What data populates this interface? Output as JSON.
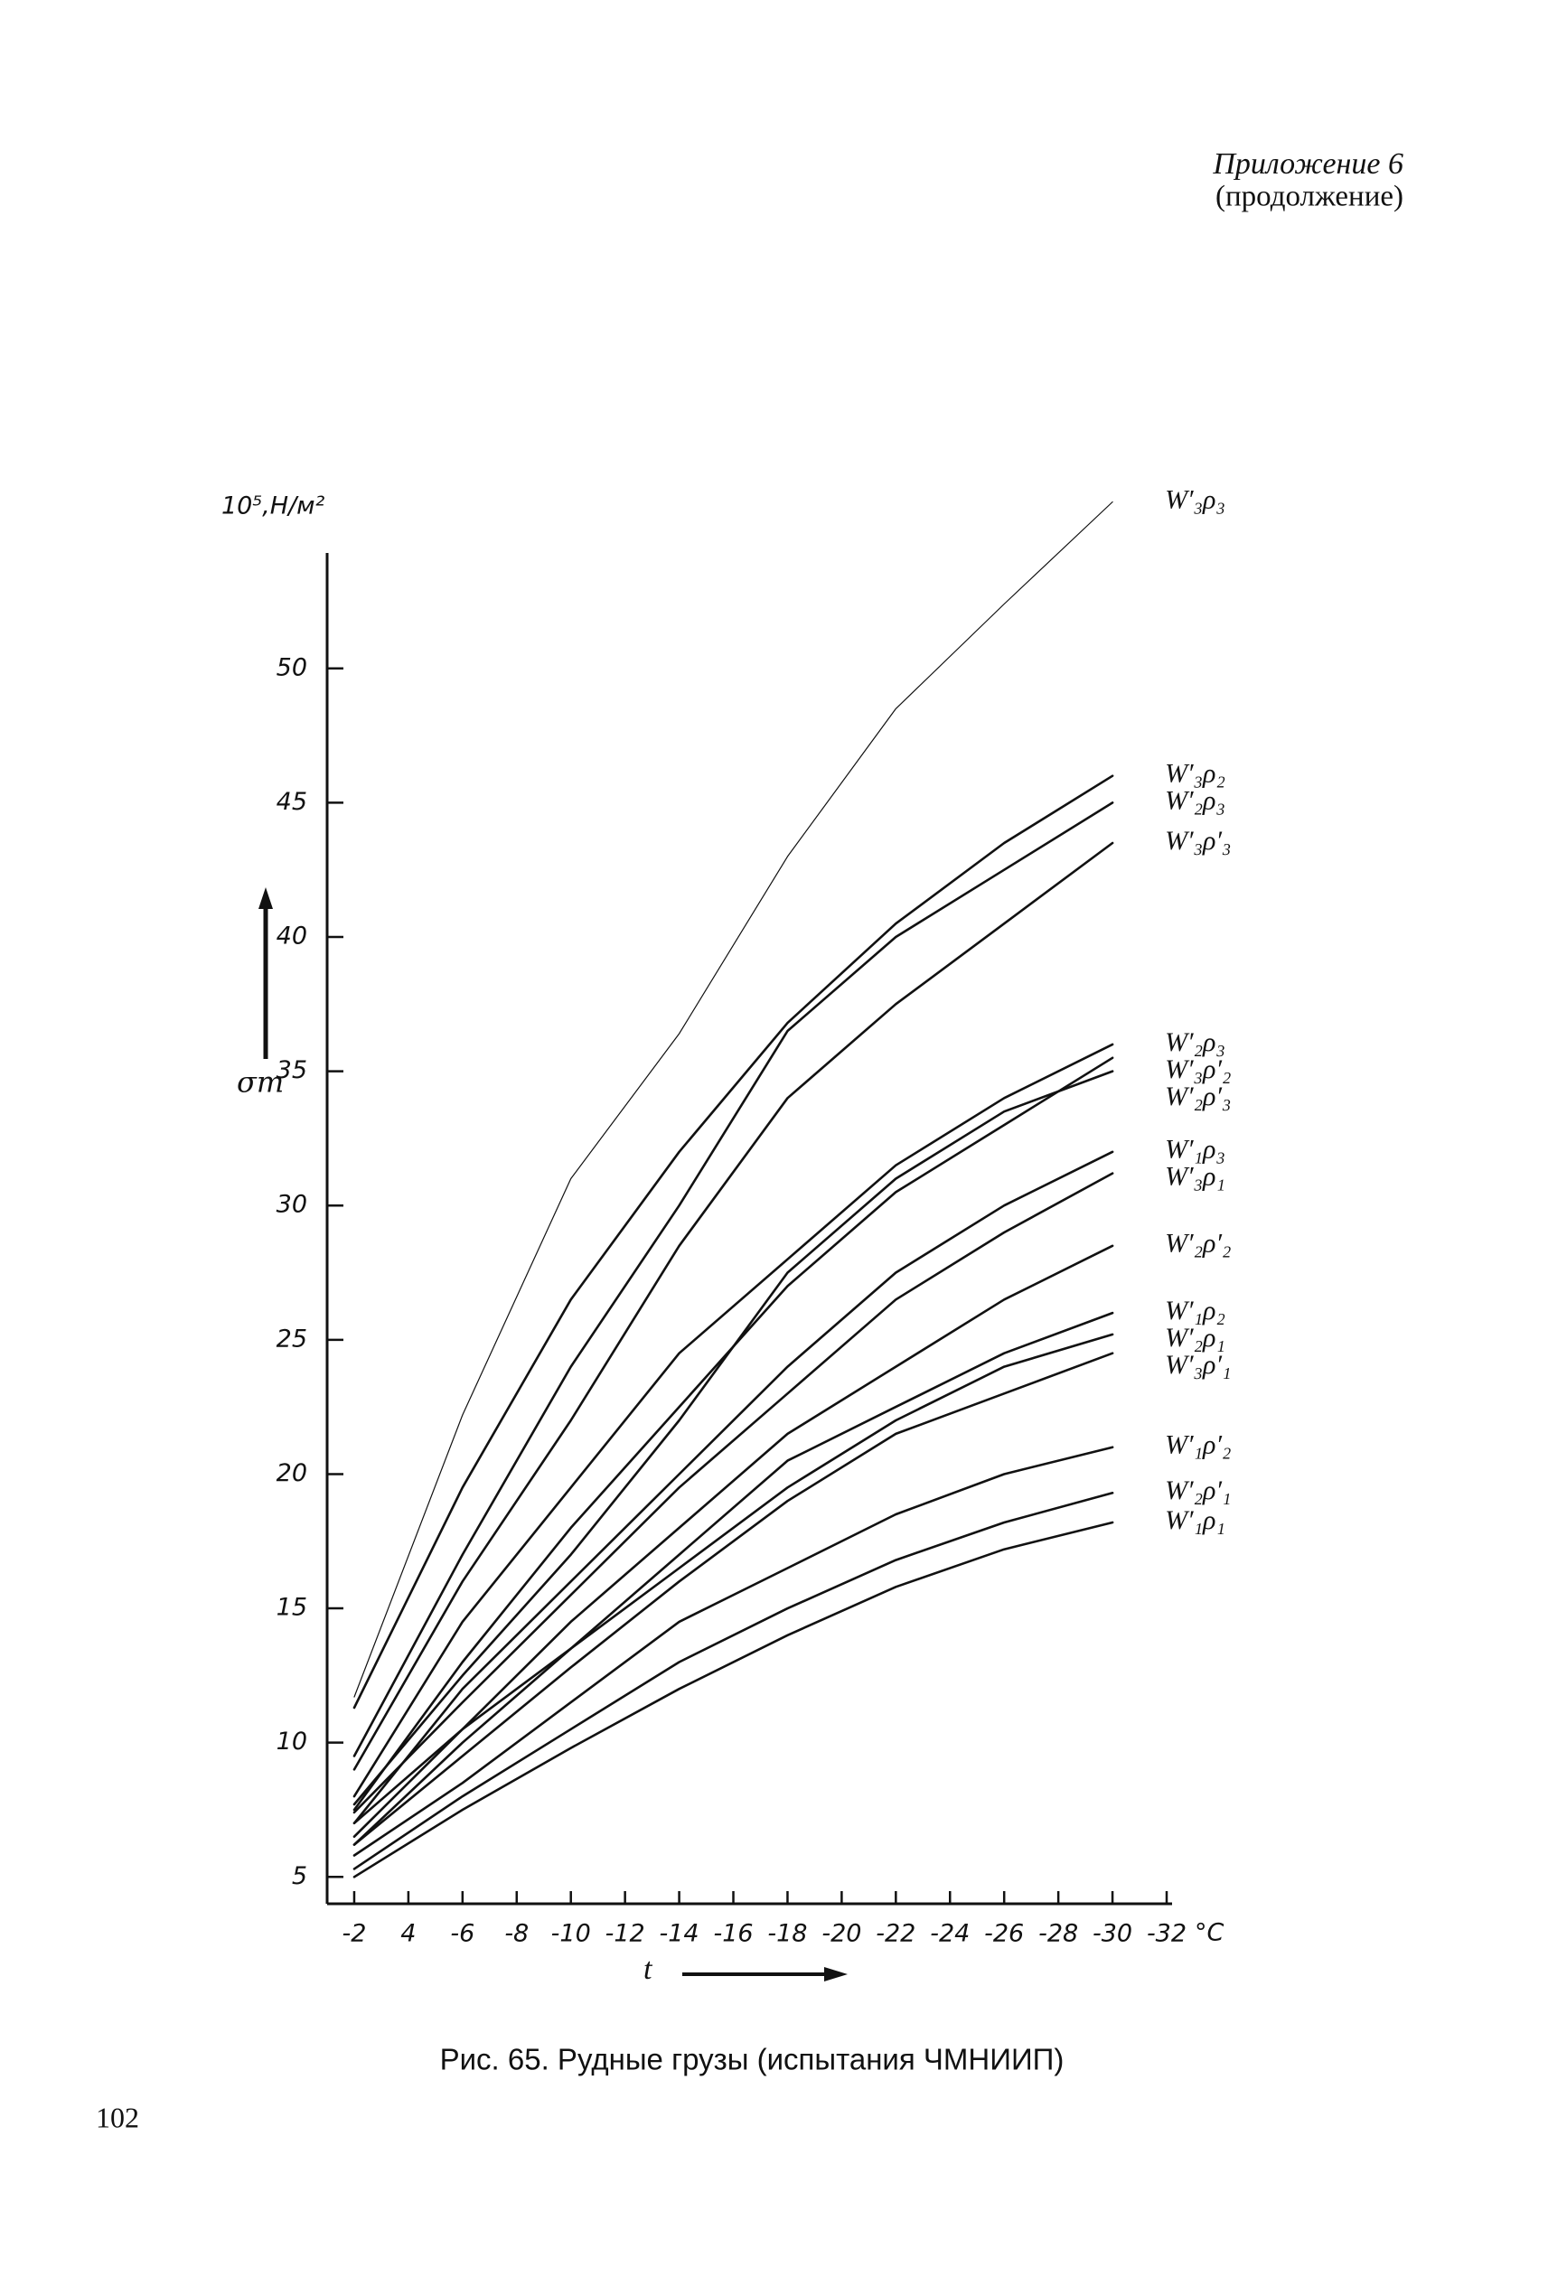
{
  "header": {
    "appendix": "Приложение 6",
    "continued": "(продолжение)"
  },
  "chart_data": {
    "type": "line",
    "color": "#111",
    "y_unit": "10⁵,Н/м²",
    "y_label": "σт",
    "x_label": "t",
    "x_unit": "°C",
    "x": [
      -2,
      -6,
      -10,
      -14,
      -18,
      -22,
      -26,
      -30
    ],
    "xlim": [
      -1,
      -32.2
    ],
    "ylim": [
      4,
      54.3
    ],
    "xticks": [
      -2,
      {
        "value": -4,
        "label": "4"
      },
      -6,
      -8,
      -10,
      -12,
      -14,
      -16,
      -18,
      -20,
      -22,
      -24,
      -26,
      -28,
      -30,
      -32
    ],
    "yticks": [
      5,
      10,
      15,
      20,
      25,
      30,
      35,
      40,
      45,
      50
    ],
    "series": [
      {
        "name": "W′₃ρ₃",
        "line_width": 1.2,
        "values": [
          11.7,
          22.2,
          31,
          36.4,
          43,
          48.5,
          52.4,
          56.2
        ]
      },
      {
        "name": "W′₃ρ₂",
        "line_width": 2.6,
        "values": [
          11.3,
          19.5,
          26.5,
          32,
          36.8,
          40.5,
          43.5,
          46
        ]
      },
      {
        "name": "W′₂ρ₃",
        "line_width": 2.6,
        "values": [
          9.5,
          17,
          24,
          30,
          36.5,
          40,
          42.5,
          45
        ]
      },
      {
        "name": "W′₃ρ′₃",
        "line_width": 2.6,
        "values": [
          9,
          16,
          22,
          28.5,
          34,
          37.5,
          40.5,
          43.5
        ]
      },
      {
        "name": "W′₂ρ₃",
        "line_width": 2.6,
        "values": [
          8,
          14.5,
          19.5,
          24.5,
          28,
          31.5,
          34,
          36
        ]
      },
      {
        "name": "W′₃ρ′₂",
        "line_width": 2.6,
        "values": [
          7.5,
          13,
          18,
          22.5,
          27,
          30.5,
          33,
          35.5
        ]
      },
      {
        "name": "W′₂ρ′₃",
        "line_width": 2.6,
        "values": [
          7.7,
          12.5,
          17,
          22,
          27.5,
          31,
          33.5,
          35
        ]
      },
      {
        "name": "W′₁ρ₃",
        "line_width": 2.6,
        "values": [
          7,
          12,
          16,
          20,
          24,
          27.5,
          30,
          32
        ]
      },
      {
        "name": "W′₃ρ₁",
        "line_width": 2.6,
        "values": [
          7.4,
          11.5,
          15.5,
          19.5,
          23,
          26.5,
          29,
          31.2
        ]
      },
      {
        "name": "W′₂ρ′₂",
        "line_width": 2.6,
        "values": [
          6.5,
          10.5,
          14.5,
          18,
          21.5,
          24,
          26.5,
          28.5
        ]
      },
      {
        "name": "W′₁ρ₂",
        "line_width": 2.6,
        "values": [
          6.2,
          10,
          13.5,
          17,
          20.5,
          22.5,
          24.5,
          26
        ]
      },
      {
        "name": "W′₂ρ₁",
        "line_width": 2.6,
        "values": [
          7,
          10.5,
          13.5,
          16.5,
          19.5,
          22,
          24,
          25.2
        ]
      },
      {
        "name": "W′₃ρ′₁",
        "line_width": 2.6,
        "values": [
          6.2,
          9.5,
          12.8,
          16,
          19,
          21.5,
          23,
          24.5
        ]
      },
      {
        "name": "W′₁ρ′₂",
        "line_width": 2.6,
        "values": [
          5.8,
          8.5,
          11.5,
          14.5,
          16.5,
          18.5,
          20,
          21
        ]
      },
      {
        "name": "W′₂ρ′₁",
        "line_width": 2.6,
        "values": [
          5.3,
          8,
          10.5,
          13,
          15,
          16.8,
          18.2,
          19.3
        ]
      },
      {
        "name": "W′₁ρ₁",
        "line_width": 2.6,
        "values": [
          5,
          7.5,
          9.8,
          12,
          14,
          15.8,
          17.2,
          18.2
        ]
      }
    ]
  },
  "caption": "Рис. 65. Рудные грузы (испытания ЧМНИИП)",
  "page_number": "102"
}
